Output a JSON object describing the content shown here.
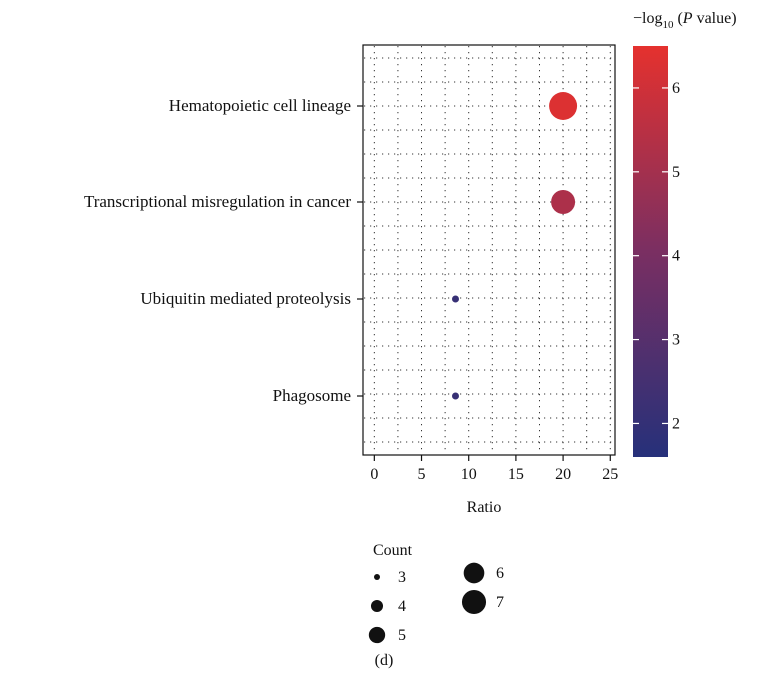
{
  "chart_data": {
    "type": "scatter",
    "subtype": "bubble",
    "categories": [
      "Hematopoietic cell lineage",
      "Transcriptional misregulation in cancer",
      "Ubiquitin mediated proteolysis",
      "Phagosome"
    ],
    "points": [
      {
        "category": "Hematopoietic cell lineage",
        "ratio": 20.0,
        "count": 7,
        "neglog10p": 6.3
      },
      {
        "category": "Transcriptional misregulation in cancer",
        "ratio": 20.0,
        "count": 6,
        "neglog10p": 5.2
      },
      {
        "category": "Ubiquitin mediated proteolysis",
        "ratio": 8.6,
        "count": 3,
        "neglog10p": 2.1
      },
      {
        "category": "Phagosome",
        "ratio": 8.6,
        "count": 3,
        "neglog10p": 2.1
      }
    ],
    "xlabel": "Ratio",
    "xlim": [
      -1.2,
      25.5
    ],
    "xticks": [
      0,
      5,
      10,
      15,
      20,
      25
    ],
    "grid": "dotted",
    "colorbar": {
      "title_prefix": "−log",
      "title_sub": "10",
      "title_paren_open": " (",
      "title_italic": "P",
      "title_suffix": " value)",
      "min": 1.6,
      "max": 6.5,
      "ticks": [
        2,
        3,
        4,
        5,
        6
      ],
      "color_low": "#26307a",
      "color_mid": "#7a2f62",
      "color_high": "#e5312e"
    },
    "size_legend": {
      "title": "Count",
      "items": [
        3,
        4,
        5,
        6,
        7
      ]
    }
  },
  "caption": "(d)"
}
